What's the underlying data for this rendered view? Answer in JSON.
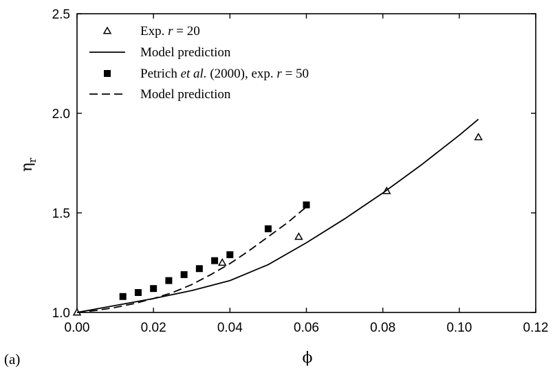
{
  "panel_label": "(a)",
  "chart_data": {
    "type": "scatter",
    "title": "",
    "xlabel": "ϕ",
    "ylabel": "η",
    "ylabel_sub": "r",
    "xlim": [
      0.0,
      0.12
    ],
    "ylim": [
      1.0,
      2.5
    ],
    "xticks": [
      "0.00",
      "0.02",
      "0.04",
      "0.06",
      "0.08",
      "0.10",
      "0.12"
    ],
    "yticks": [
      "1.0",
      "1.5",
      "2.0",
      "2.5"
    ],
    "grid": false,
    "legend_position": "top-left",
    "series": [
      {
        "name": "Exp. r = 20",
        "legend_parts": [
          {
            "text": "Exp. ",
            "italic": false
          },
          {
            "text": "r",
            "italic": true
          },
          {
            "text": " = 20",
            "italic": false
          }
        ],
        "kind": "markers",
        "marker": "open-triangle",
        "x": [
          0.0,
          0.038,
          0.058,
          0.081,
          0.105
        ],
        "y": [
          1.0,
          1.25,
          1.38,
          1.61,
          1.88
        ]
      },
      {
        "name": "Model prediction",
        "legend_parts": [
          {
            "text": "Model prediction",
            "italic": false
          }
        ],
        "kind": "line",
        "style": "solid",
        "x": [
          0.0,
          0.01,
          0.02,
          0.03,
          0.04,
          0.05,
          0.06,
          0.07,
          0.08,
          0.09,
          0.1,
          0.105
        ],
        "y": [
          1.0,
          1.035,
          1.07,
          1.11,
          1.16,
          1.24,
          1.35,
          1.47,
          1.6,
          1.74,
          1.89,
          1.97
        ]
      },
      {
        "name": "Petrich et al. (2000), exp. r = 50",
        "legend_parts": [
          {
            "text": "Petrich ",
            "italic": false
          },
          {
            "text": "et al.",
            "italic": true
          },
          {
            "text": " (2000), exp. ",
            "italic": false
          },
          {
            "text": "r",
            "italic": true
          },
          {
            "text": " = 50",
            "italic": false
          }
        ],
        "kind": "markers",
        "marker": "filled-square",
        "x": [
          0.012,
          0.016,
          0.02,
          0.024,
          0.028,
          0.032,
          0.036,
          0.04,
          0.05,
          0.06
        ],
        "y": [
          1.08,
          1.1,
          1.12,
          1.16,
          1.19,
          1.22,
          1.26,
          1.29,
          1.42,
          1.54
        ]
      },
      {
        "name": "Model prediction",
        "legend_parts": [
          {
            "text": "Model prediction",
            "italic": false
          }
        ],
        "kind": "line",
        "style": "dashed",
        "x": [
          0.0,
          0.005,
          0.01,
          0.015,
          0.02,
          0.025,
          0.03,
          0.035,
          0.04,
          0.045,
          0.05,
          0.055,
          0.06
        ],
        "y": [
          1.0,
          1.01,
          1.025,
          1.045,
          1.07,
          1.1,
          1.14,
          1.19,
          1.245,
          1.31,
          1.38,
          1.45,
          1.53
        ]
      }
    ]
  }
}
